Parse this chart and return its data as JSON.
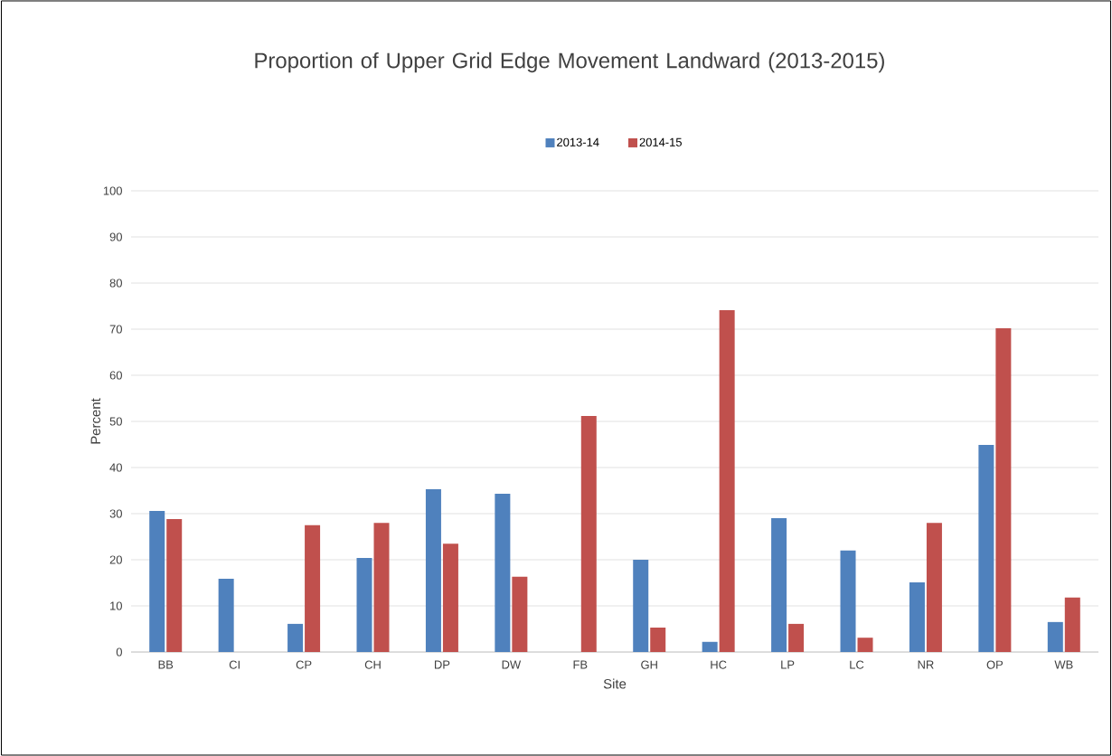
{
  "chart_data": {
    "type": "bar",
    "title": "Proportion of Upper Grid Edge Movement Landward (2013-2015)",
    "xlabel": "Site",
    "ylabel": "Percent",
    "categories": [
      "BB",
      "CI",
      "CP",
      "CH",
      "DP",
      "DW",
      "FB",
      "GH",
      "HC",
      "LP",
      "LC",
      "NR",
      "OP",
      "WB"
    ],
    "series": [
      {
        "name": "2013-14",
        "color": "#4f81bd",
        "values": [
          30.6,
          15.9,
          6.1,
          20.4,
          35.3,
          34.3,
          0,
          20,
          2.2,
          29,
          22,
          15.1,
          44.9,
          6.5
        ]
      },
      {
        "name": "2014-15",
        "color": "#c0504d",
        "values": [
          28.8,
          0,
          27.5,
          28,
          23.5,
          16.3,
          51.2,
          5.3,
          74.1,
          6.1,
          3.1,
          28,
          70.2,
          11.8
        ]
      }
    ],
    "ylim": [
      0,
      100
    ],
    "yticks": [
      0,
      10,
      20,
      30,
      40,
      50,
      60,
      70,
      80,
      90,
      100
    ],
    "grid": "y",
    "legend": "top"
  }
}
